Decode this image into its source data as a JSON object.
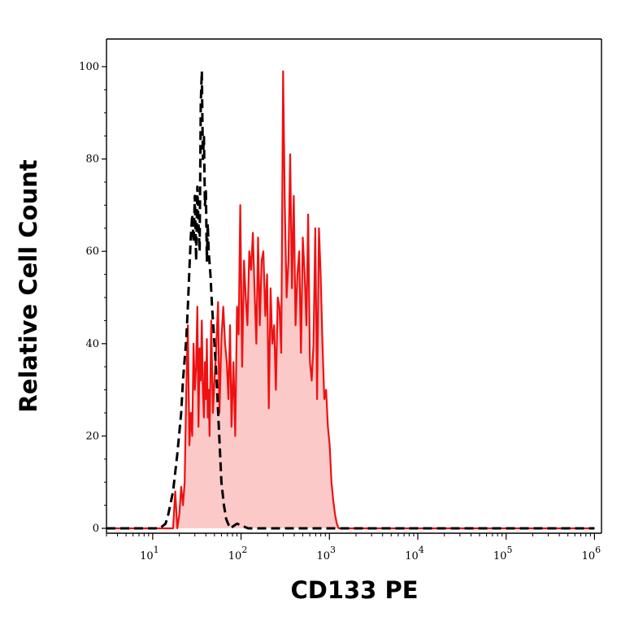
{
  "chart_data": {
    "type": "area",
    "xlabel": "CD133 PE",
    "ylabel": "Relative Cell Count",
    "xscale": "log",
    "xlim": [
      3,
      1200000
    ],
    "ylim": [
      0,
      100
    ],
    "xticks": [
      {
        "base": "10",
        "exp": "1",
        "value": 10
      },
      {
        "base": "10",
        "exp": "2",
        "value": 100
      },
      {
        "base": "10",
        "exp": "3",
        "value": 1000
      },
      {
        "base": "10",
        "exp": "4",
        "value": 10000
      },
      {
        "base": "10",
        "exp": "5",
        "value": 100000
      },
      {
        "base": "10",
        "exp": "6",
        "value": 1000000
      }
    ],
    "yticks": [
      "0",
      "20",
      "40",
      "60",
      "80",
      "100"
    ],
    "grid": false,
    "series": [
      {
        "style": "dashed",
        "color": "#000000",
        "x": [
          3,
          12,
          14,
          15,
          17,
          19,
          21,
          22,
          24,
          25,
          26,
          27,
          28,
          29,
          30,
          31,
          32,
          33,
          34,
          35,
          36,
          37,
          38,
          39,
          40,
          41,
          42,
          43,
          45,
          47,
          50,
          53,
          56,
          60,
          64,
          68,
          75,
          90,
          120,
          1000000
        ],
        "y": [
          0,
          0,
          1,
          3,
          8,
          16,
          25,
          32,
          41,
          48,
          56,
          63,
          68,
          62,
          72,
          58,
          74,
          66,
          60,
          92,
          99,
          80,
          85,
          70,
          73,
          58,
          66,
          60,
          55,
          48,
          40,
          32,
          22,
          10,
          5,
          2,
          0,
          1,
          0,
          0
        ]
      },
      {
        "style": "solid",
        "color": "#ee1111",
        "fill": "#fcc9c9",
        "x": [
          3,
          17,
          18,
          19,
          20,
          21,
          22,
          23,
          24,
          25,
          26,
          27,
          28,
          29,
          30,
          31,
          32,
          33,
          34,
          35,
          36,
          37,
          38,
          39,
          40,
          41,
          42,
          43,
          44,
          46,
          48,
          50,
          52,
          55,
          57,
          60,
          63,
          66,
          69,
          72,
          75,
          78,
          82,
          86,
          90,
          94,
          98,
          103,
          108,
          113,
          118,
          124,
          130,
          136,
          142,
          149,
          156,
          163,
          171,
          179,
          188,
          197,
          206,
          216,
          226,
          237,
          248,
          260,
          272,
          285,
          299,
          313,
          328,
          344,
          360,
          377,
          395,
          414,
          434,
          455,
          477,
          500,
          524,
          549,
          575,
          602,
          631,
          661,
          693,
          726,
          761,
          797,
          835,
          875,
          917,
          961,
          1007,
          1055,
          1105,
          1158,
          1213,
          1271,
          1332,
          1400,
          1000000
        ],
        "y": [
          0,
          0,
          8,
          0,
          3,
          9,
          5,
          10,
          30,
          44,
          18,
          25,
          20,
          40,
          30,
          35,
          48,
          22,
          39,
          32,
          45,
          30,
          24,
          36,
          28,
          41,
          24,
          30,
          20,
          45,
          25,
          32,
          38,
          49,
          25,
          41,
          48,
          40,
          36,
          28,
          44,
          22,
          36,
          20,
          48,
          42,
          70,
          35,
          58,
          50,
          44,
          60,
          56,
          64,
          52,
          40,
          63,
          44,
          58,
          60,
          46,
          55,
          26,
          52,
          40,
          44,
          30,
          50,
          48,
          38,
          99,
          70,
          50,
          58,
          81,
          52,
          72,
          44,
          55,
          60,
          38,
          63,
          55,
          44,
          68,
          36,
          32,
          40,
          65,
          28,
          65,
          55,
          40,
          28,
          30,
          22,
          18,
          10,
          6,
          3,
          1,
          0,
          0,
          0,
          0
        ]
      }
    ]
  }
}
